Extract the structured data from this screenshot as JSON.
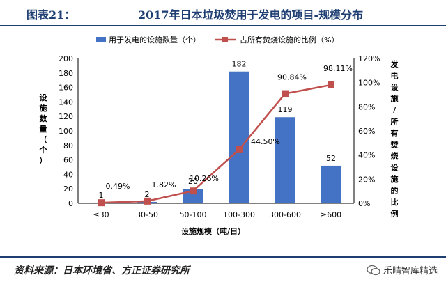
{
  "header": {
    "figure_no": "图表21：",
    "title": "2017年日本垃圾焚用于发电的项目-规模分布"
  },
  "footer": {
    "source": "资料来源：日本环境省、方正证券研究所",
    "watermark": "乐晴智库精选"
  },
  "colors": {
    "bar": "#4472c4",
    "line": "#c0504d",
    "header_rule": "#1f3f73"
  },
  "chart_data": {
    "type": "bar",
    "categories": [
      "≤30",
      "30-50",
      "50-100",
      "100-300",
      "300-600",
      "≥600"
    ],
    "xlabel": "设施规模（吨/日）",
    "ylabel": "设施数量（个）",
    "y2label": "发电设施/所有焚烧设施的比例",
    "ylim": [
      0,
      200
    ],
    "yticks": [
      "0",
      "20",
      "40",
      "60",
      "80",
      "100",
      "120",
      "140",
      "160",
      "180",
      "200"
    ],
    "y2lim": [
      0,
      120
    ],
    "y2ticks": [
      "0%",
      "20%",
      "40%",
      "60%",
      "80%",
      "100%",
      "120%"
    ],
    "legend_position": "top",
    "grid": false,
    "series": [
      {
        "name": "用于发电的设施数量（个）",
        "kind": "bar",
        "axis": "left",
        "values": [
          1,
          2,
          20,
          182,
          119,
          52
        ],
        "labels": [
          "1",
          "2",
          "20",
          "182",
          "119",
          "52"
        ]
      },
      {
        "name": "占所有焚烧设施的比例（%）",
        "kind": "line",
        "axis": "right",
        "values": [
          0.49,
          1.82,
          10.26,
          44.5,
          90.84,
          98.11
        ],
        "labels": [
          "0.49%",
          "1.82%",
          "10.26%",
          "44.50%",
          "90.84%",
          "98.11%"
        ]
      }
    ]
  }
}
